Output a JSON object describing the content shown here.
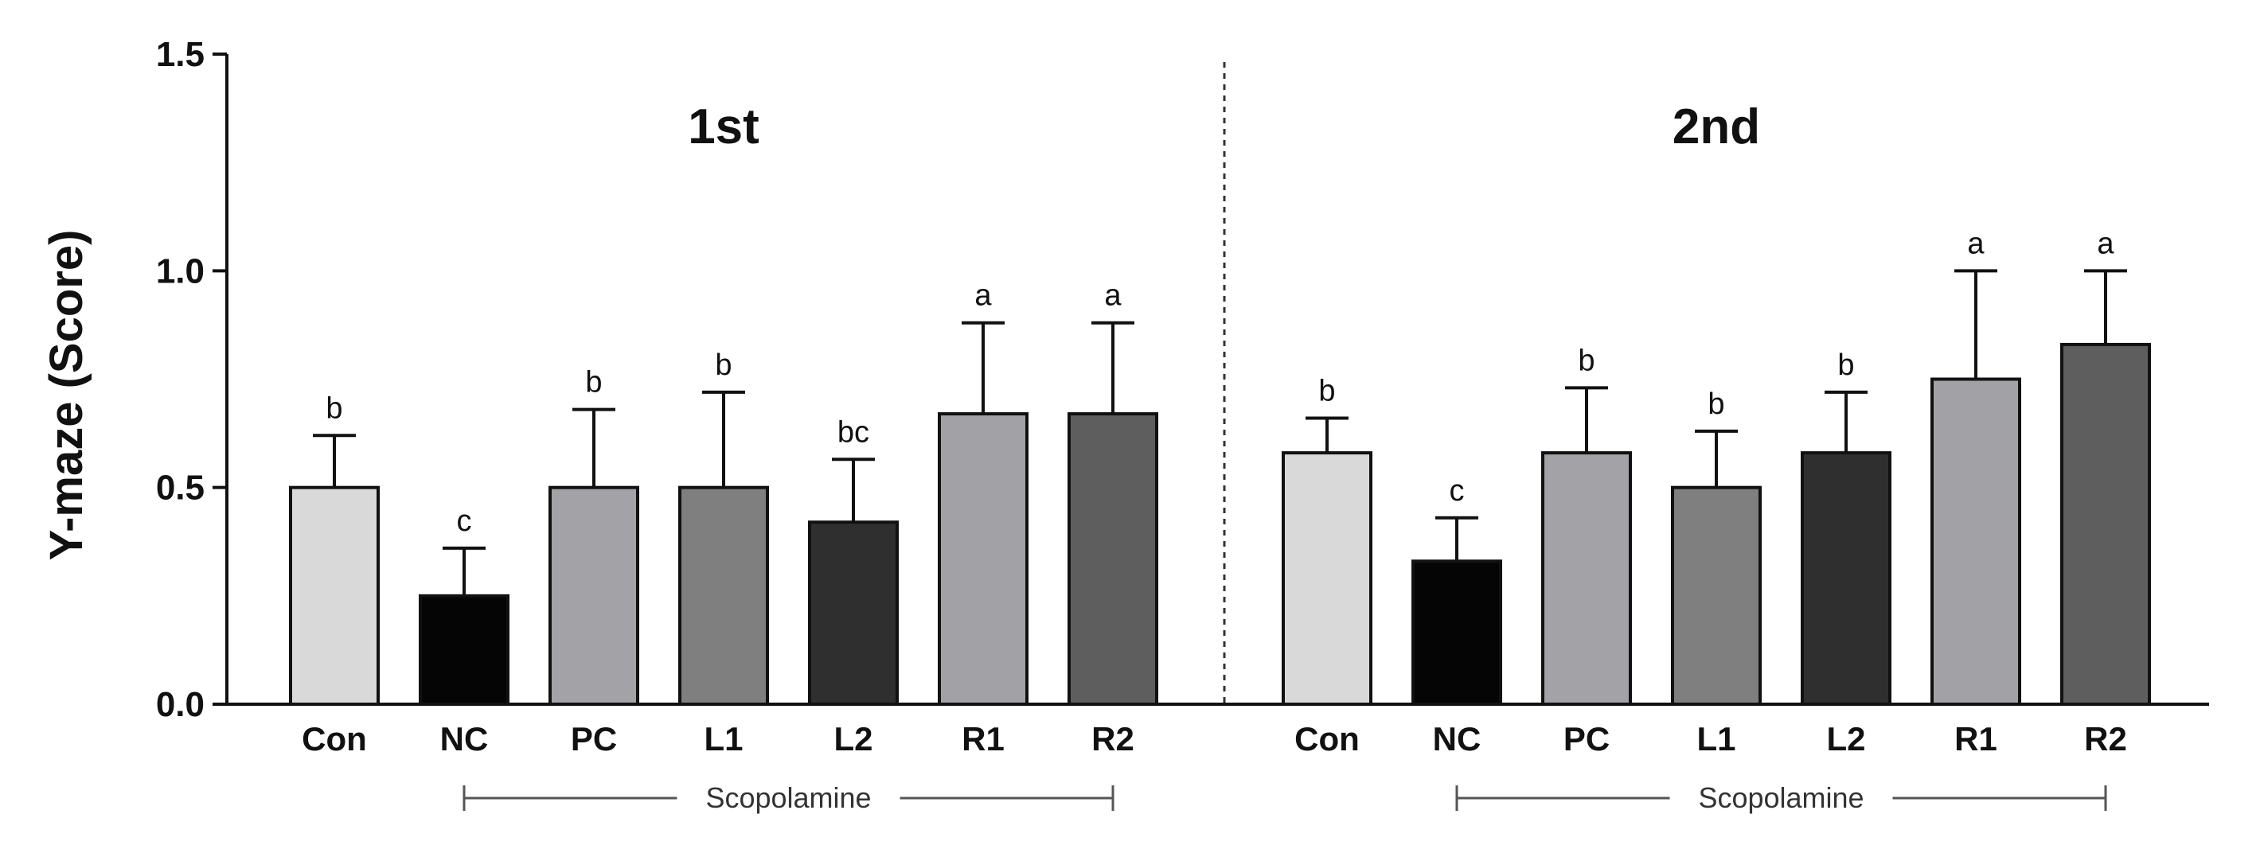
{
  "chart_data": {
    "type": "bar",
    "ylabel": "Y-maze (Score)",
    "ylim": [
      0,
      1.5
    ],
    "yticks": [
      "0.0",
      "0.5",
      "1.0",
      "1.5"
    ],
    "ytick_values": [
      0,
      0.5,
      1.0,
      1.5
    ],
    "categories": [
      "Con",
      "NC",
      "PC",
      "L1",
      "L2",
      "R1",
      "R2"
    ],
    "bar_colors": [
      "#d9d9d9",
      "#050505",
      "#a3a2a7",
      "#7f7f7f",
      "#2f2f2f",
      "#a2a1a6",
      "#5e5e5e"
    ],
    "bracket_label": "Scopolamine",
    "panels": [
      {
        "title": "1st",
        "values": [
          0.5,
          0.25,
          0.5,
          0.5,
          0.42,
          0.67,
          0.67
        ],
        "errors": [
          0.12,
          0.11,
          0.18,
          0.22,
          0.145,
          0.21,
          0.21
        ],
        "letters": [
          "b",
          "c",
          "b",
          "b",
          "bc",
          "a",
          "a"
        ]
      },
      {
        "title": "2nd",
        "values": [
          0.58,
          0.33,
          0.58,
          0.5,
          0.58,
          0.75,
          0.83
        ],
        "errors": [
          0.08,
          0.1,
          0.15,
          0.13,
          0.14,
          0.25,
          0.17
        ],
        "letters": [
          "b",
          "c",
          "b",
          "b",
          "b",
          "a",
          "a"
        ]
      }
    ]
  }
}
